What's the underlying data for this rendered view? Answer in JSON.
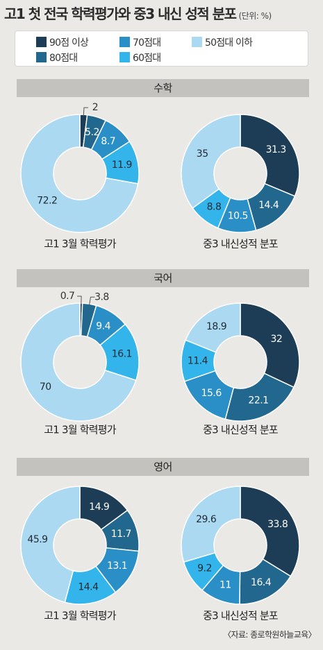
{
  "title": "고1 첫 전국 학력평가와 중3 내신 성적 분포",
  "unit": "(단위: %)",
  "source": "〈자료: 종로학원하늘교육〉",
  "legend": [
    {
      "label": "90점 이상",
      "color": "#1c3d55"
    },
    {
      "label": "80점대",
      "color": "#22688e"
    },
    {
      "label": "70점대",
      "color": "#2a8fc6"
    },
    {
      "label": "60점대",
      "color": "#33b4ea"
    },
    {
      "label": "50점대 이하",
      "color": "#abd9f2"
    }
  ],
  "chart_data": [
    {
      "type": "pie",
      "subject": "수학",
      "caption": "고1 3월 학력평가",
      "categories": [
        "90점 이상",
        "80점대",
        "70점대",
        "60점대",
        "50점대 이하"
      ],
      "values": [
        2,
        5.2,
        8.7,
        11.9,
        72.2
      ],
      "labels": [
        "2",
        "5.2",
        "8.7",
        "11.9",
        "72.2"
      ]
    },
    {
      "type": "pie",
      "subject": "수학",
      "caption": "중3 내신성적 분포",
      "categories": [
        "90점 이상",
        "80점대",
        "70점대",
        "60점대",
        "50점대 이하"
      ],
      "values": [
        31.3,
        14.4,
        10.5,
        8.8,
        35
      ],
      "labels": [
        "31.3",
        "14.4",
        "10.5",
        "8.8",
        "35"
      ]
    },
    {
      "type": "pie",
      "subject": "국어",
      "caption": "고1 3월 학력평가",
      "categories": [
        "90점 이상",
        "80점대",
        "70점대",
        "60점대",
        "50점대 이하"
      ],
      "values": [
        0.7,
        3.8,
        9.4,
        16.1,
        70
      ],
      "labels": [
        "0.7",
        "3.8",
        "9.4",
        "16.1",
        "70"
      ]
    },
    {
      "type": "pie",
      "subject": "국어",
      "caption": "중3 내신성적 분포",
      "categories": [
        "90점 이상",
        "80점대",
        "70점대",
        "60점대",
        "50점대 이하"
      ],
      "values": [
        32,
        22.1,
        15.6,
        11.4,
        18.9
      ],
      "labels": [
        "32",
        "22.1",
        "15.6",
        "11.4",
        "18.9"
      ]
    },
    {
      "type": "pie",
      "subject": "영어",
      "caption": "고1 3월 학력평가",
      "categories": [
        "90점 이상",
        "80점대",
        "70점대",
        "60점대",
        "50점대 이하"
      ],
      "values": [
        14.9,
        11.7,
        13.1,
        14.4,
        45.9
      ],
      "labels": [
        "14.9",
        "11.7",
        "13.1",
        "14.4",
        "45.9"
      ]
    },
    {
      "type": "pie",
      "subject": "영어",
      "caption": "중3 내신성적 분포",
      "categories": [
        "90점 이상",
        "80점대",
        "70점대",
        "60점대",
        "50점대 이하"
      ],
      "values": [
        33.8,
        16.4,
        11,
        9.2,
        29.6
      ],
      "labels": [
        "33.8",
        "16.4",
        "11",
        "9.2",
        "29.6"
      ]
    }
  ]
}
